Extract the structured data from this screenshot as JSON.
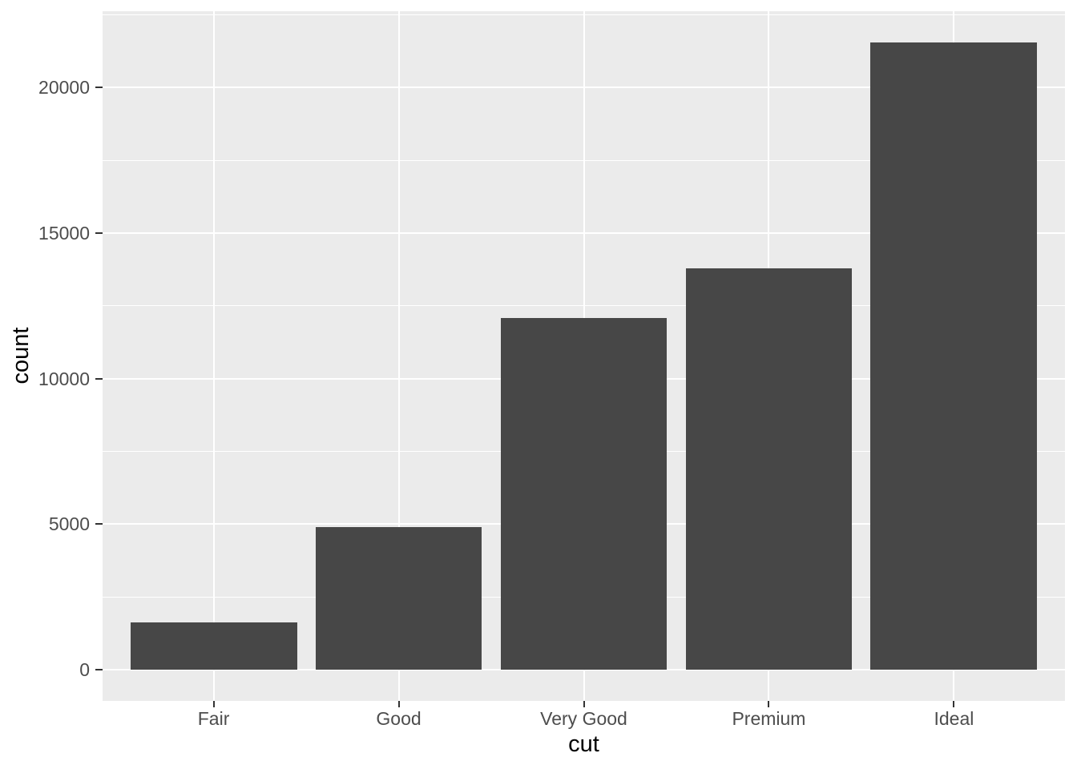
{
  "chart_data": {
    "type": "bar",
    "title": "",
    "categories": [
      "Fair",
      "Good",
      "Very Good",
      "Premium",
      "Ideal"
    ],
    "values": [
      1610,
      4906,
      12082,
      13791,
      21551
    ],
    "xlabel": "cut",
    "ylabel": "count",
    "y_major_ticks": [
      0,
      5000,
      10000,
      15000,
      20000
    ],
    "y_tick_labels": [
      "0",
      "5000",
      "10000",
      "15000",
      "20000"
    ],
    "y_minor_gridlines": [
      2500,
      7500,
      12500,
      17500,
      22500
    ],
    "ylim": [
      -1078,
      22629
    ],
    "bar_width_fraction": 0.9,
    "legend_position": "none",
    "grid": "on",
    "colors": {
      "bar_fill": "#474747",
      "panel_background": "#EBEBEB",
      "gridline": "#FFFFFF",
      "axis_text": "#4D4D4D",
      "axis_title": "#000000",
      "tick_mark": "#333333",
      "figure_background": "#FFFFFF"
    }
  }
}
